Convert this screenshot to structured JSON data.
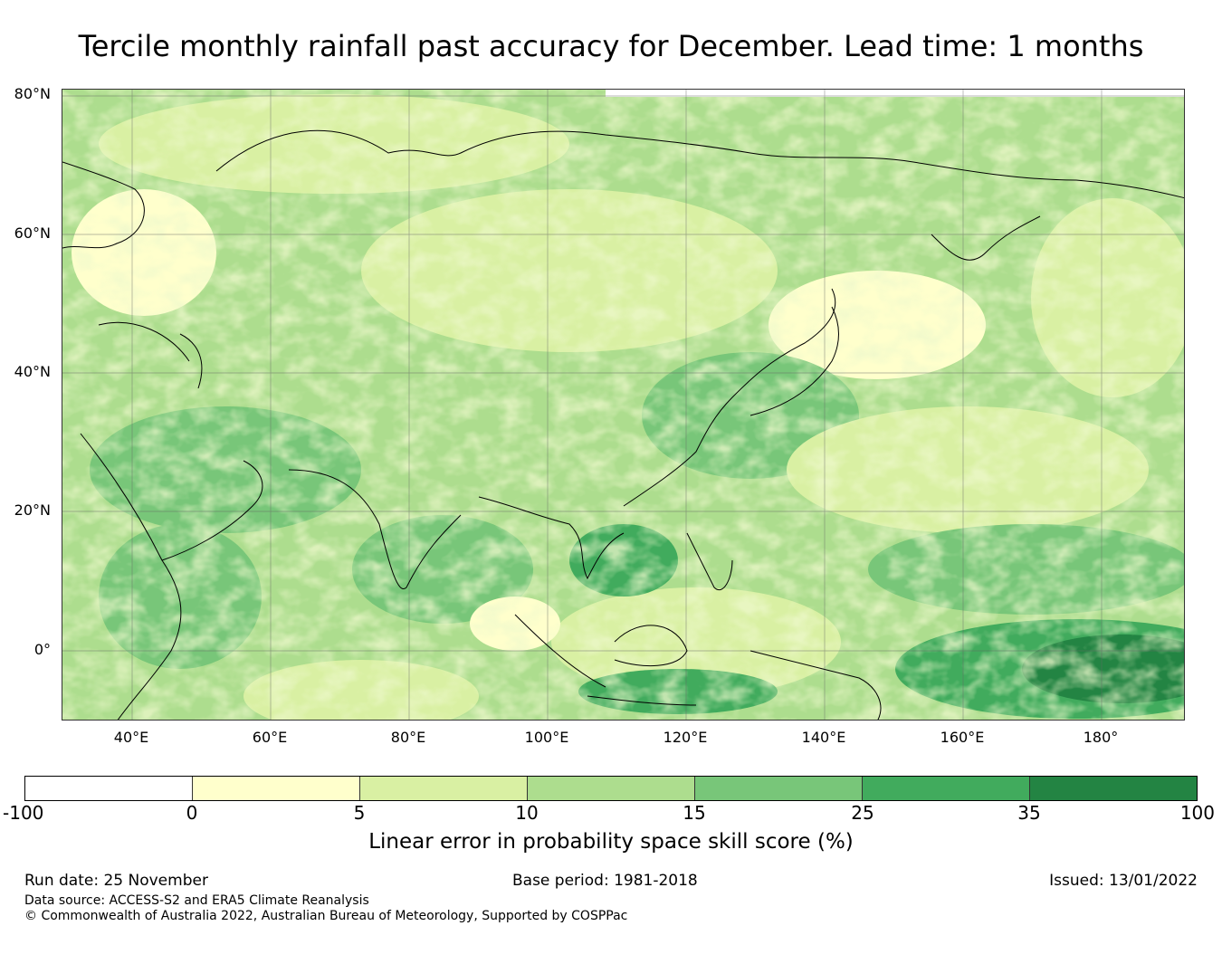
{
  "title": "Tercile monthly rainfall past accuracy for December. Lead time: 1 months",
  "map": {
    "lat_ticks": [
      "80°N",
      "60°N",
      "40°N",
      "20°N",
      "0°"
    ],
    "lon_ticks": [
      "40°E",
      "60°E",
      "80°E",
      "100°E",
      "120°E",
      "140°E",
      "160°E",
      "180°"
    ],
    "lon_range": [
      30,
      192
    ],
    "lat_range": [
      -10,
      80
    ],
    "colors": {
      "lt0": "#ffffff",
      "c0_5": "#ffffcc",
      "c5_10": "#d9f0a3",
      "c10_15": "#addd8e",
      "c15_25": "#78c679",
      "c25_35": "#41ab5d",
      "c35_100": "#238443",
      "coast": "#000000",
      "grid": "#666666"
    }
  },
  "colorbar": {
    "ticks": [
      "-100",
      "0",
      "5",
      "10",
      "15",
      "25",
      "35",
      "100"
    ],
    "colors": [
      "#ffffff",
      "#ffffcc",
      "#d9f0a3",
      "#addd8e",
      "#78c679",
      "#41ab5d",
      "#238443"
    ],
    "label": "Linear error in probability space skill score (%)"
  },
  "footer": {
    "run_date": "Run date: 25 November",
    "base_period": "Base period: 1981-2018",
    "issued": "Issued: 13/01/2022",
    "data_source": "Data source: ACCESS-S2 and ERA5 Climate Reanalysis",
    "copyright": "© Commonwealth of Australia 2022, Australian Bureau of Meteorology, Supported by COSPPac"
  }
}
